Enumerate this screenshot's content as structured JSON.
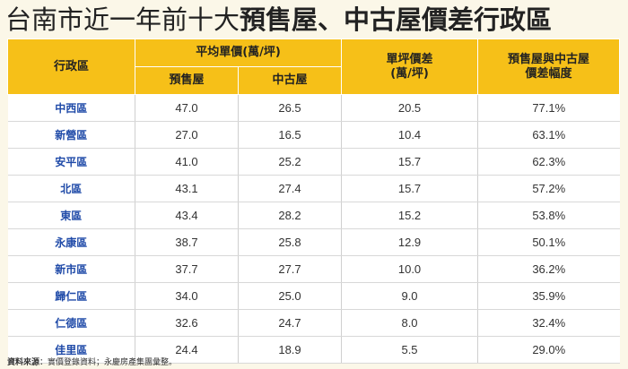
{
  "title": {
    "normal": "台南市近一年前十大",
    "bold": "預售屋、中古屋價差行政區"
  },
  "chart_data": {
    "type": "table",
    "headers": {
      "district": "行政區",
      "avg_price_group": "平均單價(萬/坪)",
      "presale": "預售屋",
      "used": "中古屋",
      "diff": "單坪價差\n(萬/坪)",
      "ratio": "預售屋與中古屋\n價差幅度"
    },
    "rows": [
      {
        "district": "中西區",
        "presale": "47.0",
        "used": "26.5",
        "diff": "20.5",
        "ratio": "77.1%"
      },
      {
        "district": "新營區",
        "presale": "27.0",
        "used": "16.5",
        "diff": "10.4",
        "ratio": "63.1%"
      },
      {
        "district": "安平區",
        "presale": "41.0",
        "used": "25.2",
        "diff": "15.7",
        "ratio": "62.3%"
      },
      {
        "district": "北區",
        "presale": "43.1",
        "used": "27.4",
        "diff": "15.7",
        "ratio": "57.2%"
      },
      {
        "district": "東區",
        "presale": "43.4",
        "used": "28.2",
        "diff": "15.2",
        "ratio": "53.8%"
      },
      {
        "district": "永康區",
        "presale": "38.7",
        "used": "25.8",
        "diff": "12.9",
        "ratio": "50.1%"
      },
      {
        "district": "新市區",
        "presale": "37.7",
        "used": "27.7",
        "diff": "10.0",
        "ratio": "36.2%"
      },
      {
        "district": "歸仁區",
        "presale": "34.0",
        "used": "25.0",
        "diff": "9.0",
        "ratio": "35.9%"
      },
      {
        "district": "仁德區",
        "presale": "32.6",
        "used": "24.7",
        "diff": "8.0",
        "ratio": "32.4%"
      },
      {
        "district": "佳里區",
        "presale": "24.4",
        "used": "18.9",
        "diff": "5.5",
        "ratio": "29.0%"
      }
    ]
  },
  "source": {
    "label": "資料來源",
    "text": "：實價登錄資料；永慶房產集團彙整。"
  },
  "colors": {
    "header_bg": "#f6c018",
    "district_text": "#1f4aa8",
    "page_bg": "#fbf7e8"
  }
}
